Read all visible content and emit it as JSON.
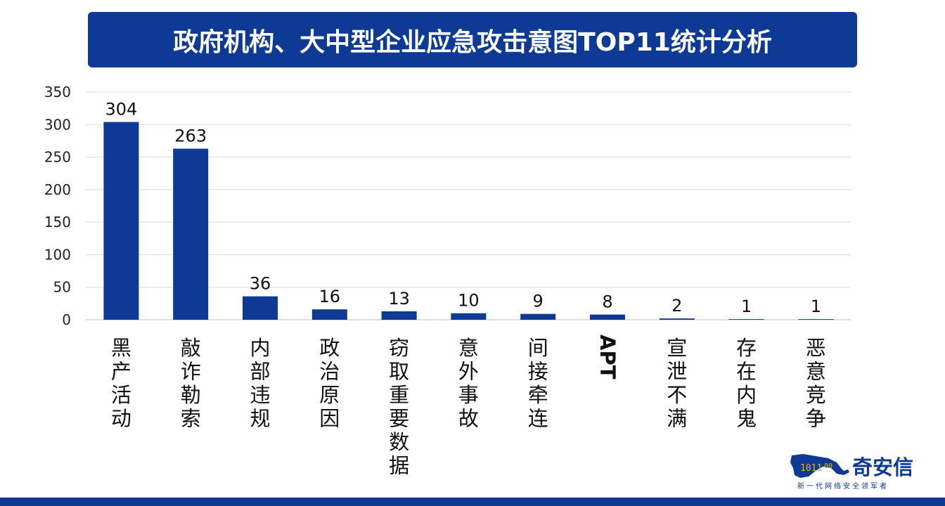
{
  "title": "政府机构、大中型企业应急攻击意图TOP11统计分析",
  "colors": {
    "primary": "#0e3a96",
    "bar": "#0e3a96",
    "grid": "#d9d9d9"
  },
  "chart_data": {
    "type": "bar",
    "title": "政府机构、大中型企业应急攻击意图TOP11统计分析",
    "categories": [
      "黑产活动",
      "敲诈勒索",
      "内部违规",
      "政治原因",
      "窃取重要数据",
      "意外事故",
      "间接牵连",
      "APT",
      "宣泄不满",
      "存在内鬼",
      "恶意竞争"
    ],
    "values": [
      304,
      263,
      36,
      16,
      13,
      10,
      9,
      8,
      2,
      1,
      1
    ],
    "yticks": [
      "0",
      "50",
      "100",
      "150",
      "200",
      "250",
      "300",
      "350"
    ],
    "ylim": [
      0,
      350
    ],
    "grid": true,
    "xlabel": "",
    "ylabel": ""
  },
  "logo": {
    "name": "奇安信",
    "tagline": "新一代网络安全领军者",
    "icon": "tiger-logo-icon"
  }
}
